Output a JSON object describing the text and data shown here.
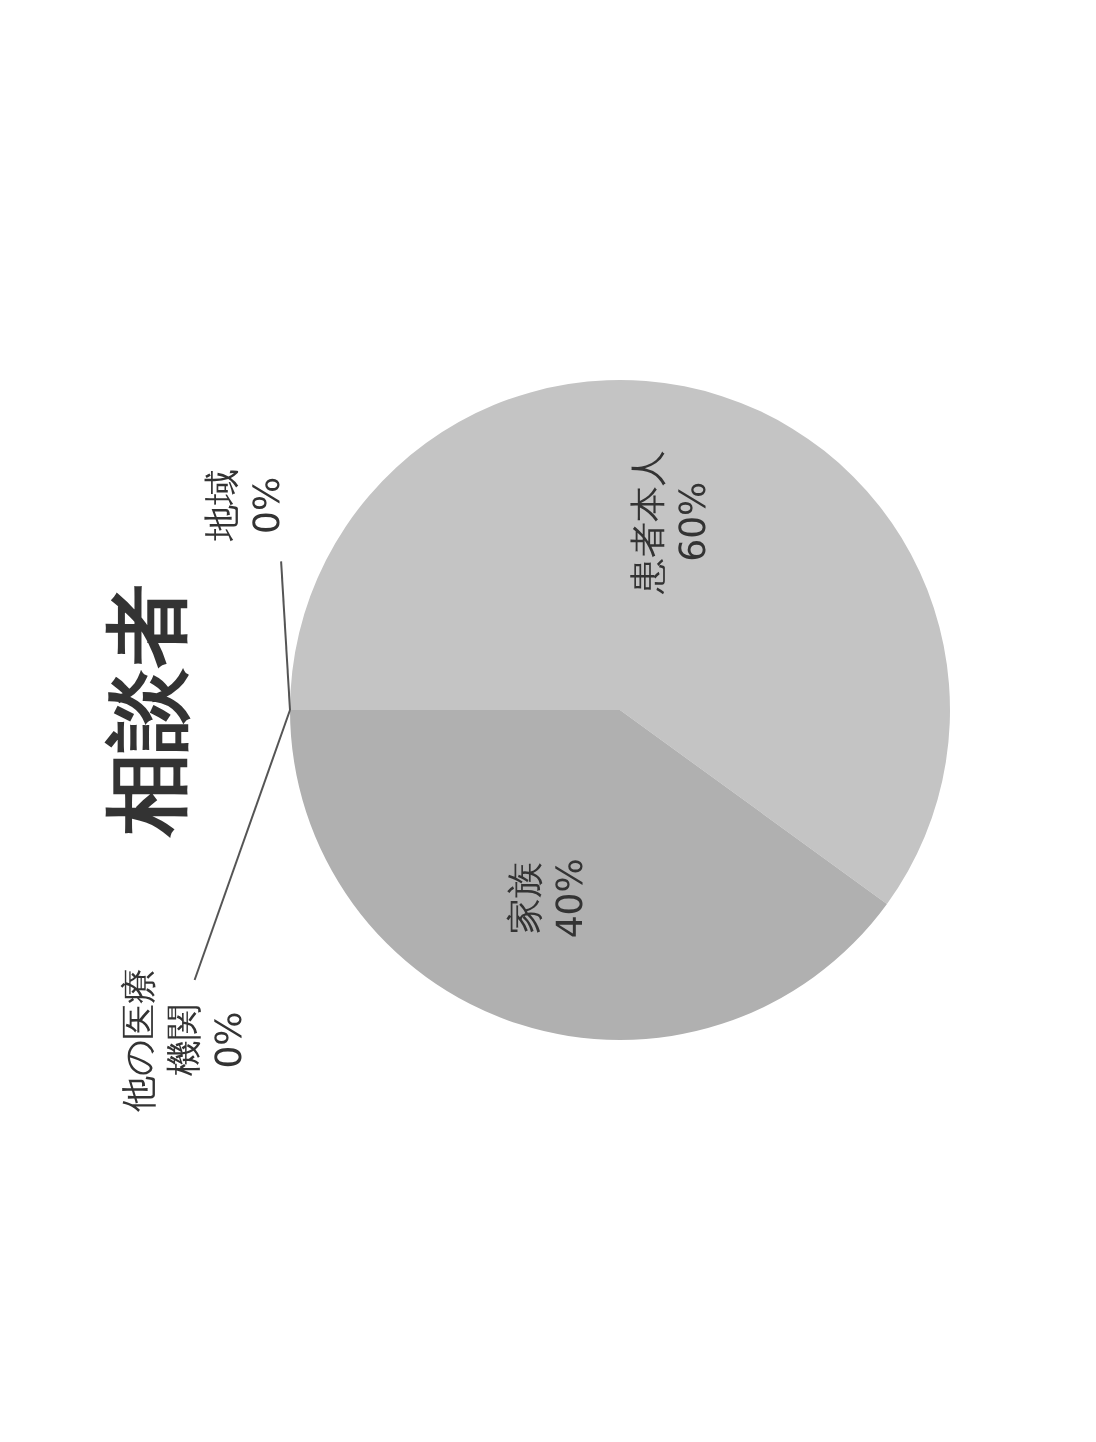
{
  "chart_data": {
    "type": "pie",
    "title": "相談者",
    "categories": [
      "患者本人",
      "家族",
      "他の医療機関",
      "地域"
    ],
    "values": [
      60,
      40,
      0,
      0
    ],
    "value_labels": [
      "60%",
      "40%",
      "0%",
      "0%"
    ],
    "colors": [
      "#c4c4c4",
      "#b0b0b0",
      "#9a9a9a",
      "#8a8a8a"
    ]
  }
}
